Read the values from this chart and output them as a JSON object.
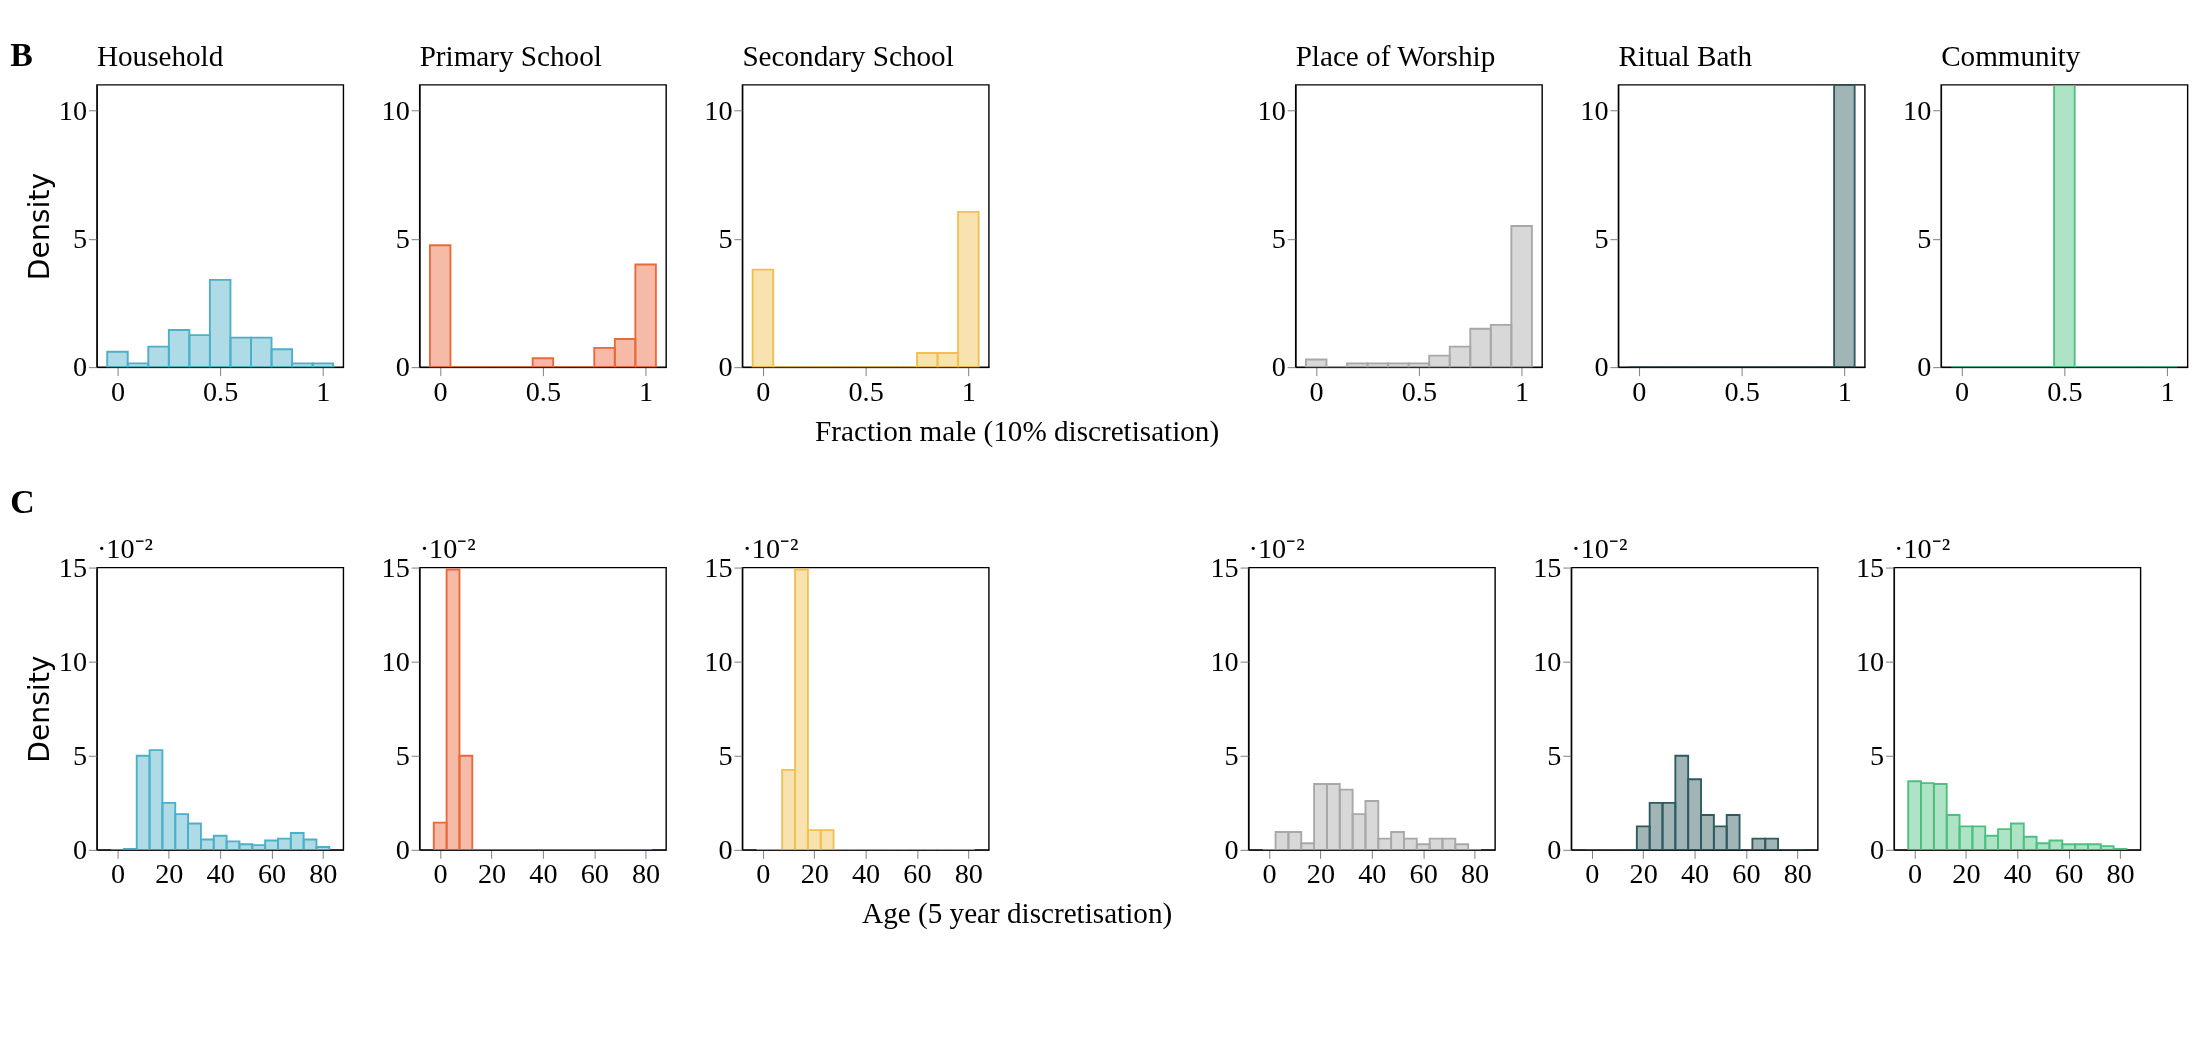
{
  "chart_data": [
    {
      "type": "histogram",
      "title": "Household",
      "ylabel": "Density",
      "annotations": [
        "B"
      ],
      "color": "#4bb0c8",
      "bins": [
        -0.05,
        0.05,
        0.15,
        0.25,
        0.35,
        0.45,
        0.55,
        0.65,
        0.75,
        0.85,
        0.95,
        1.05
      ],
      "values": [
        0.6,
        0.15,
        0.8,
        1.45,
        1.25,
        3.4,
        1.15,
        1.15,
        0.7,
        0.15,
        0.15
      ],
      "xlim": [
        -0.1,
        1.1
      ],
      "ylim": [
        0,
        11
      ],
      "xticks": [
        0,
        0.5,
        1
      ],
      "yticks": [
        0,
        5,
        10
      ]
    },
    {
      "type": "histogram",
      "title": "Primary School",
      "color": "#e8693c",
      "bins": [
        -0.05,
        0.05,
        0.15,
        0.25,
        0.35,
        0.45,
        0.55,
        0.65,
        0.75,
        0.85,
        0.95,
        1.05
      ],
      "values": [
        4.75,
        0,
        0,
        0,
        0,
        0.35,
        0,
        0,
        0.75,
        1.1,
        4.0
      ],
      "xlim": [
        -0.1,
        1.1
      ],
      "ylim": [
        0,
        11
      ],
      "xticks": [
        0,
        0.5,
        1
      ],
      "yticks": [
        0,
        5,
        10
      ]
    },
    {
      "type": "histogram",
      "title": "Secondary School",
      "xlabel": "Fraction male (10% discretisation)",
      "color": "#f0c050",
      "bins": [
        -0.05,
        0.05,
        0.15,
        0.25,
        0.35,
        0.45,
        0.55,
        0.65,
        0.75,
        0.85,
        0.95,
        1.05
      ],
      "values": [
        3.8,
        0,
        0,
        0,
        0,
        0,
        0,
        0,
        0.55,
        0.55,
        6.05
      ],
      "xlim": [
        -0.1,
        1.1
      ],
      "ylim": [
        0,
        11
      ],
      "xticks": [
        0,
        0.5,
        1
      ],
      "yticks": [
        0,
        5,
        10
      ]
    },
    {
      "type": "histogram",
      "title": "Place of Worship",
      "color": "#a8a8a8",
      "bins": [
        -0.05,
        0.05,
        0.15,
        0.25,
        0.35,
        0.45,
        0.55,
        0.65,
        0.75,
        0.85,
        0.95,
        1.05
      ],
      "values": [
        0.3,
        0,
        0.15,
        0.15,
        0.15,
        0.15,
        0.45,
        0.8,
        1.5,
        1.65,
        5.5
      ],
      "xlim": [
        -0.1,
        1.1
      ],
      "ylim": [
        0,
        11
      ],
      "xticks": [
        0,
        0.5,
        1
      ],
      "yticks": [
        0,
        5,
        10
      ]
    },
    {
      "type": "histogram",
      "title": "Ritual Bath",
      "color": "#2e5a60",
      "bins": [
        -0.05,
        0.05,
        0.15,
        0.25,
        0.35,
        0.45,
        0.55,
        0.65,
        0.75,
        0.85,
        0.95,
        1.05
      ],
      "values": [
        0,
        0,
        0,
        0,
        0,
        0,
        0,
        0,
        0,
        0,
        11
      ],
      "xlim": [
        -0.1,
        1.1
      ],
      "ylim": [
        0,
        11
      ],
      "xticks": [
        0,
        0.5,
        1
      ],
      "yticks": [
        0,
        5,
        10
      ]
    },
    {
      "type": "histogram",
      "title": "Community",
      "color": "#4cc080",
      "bins": [
        -0.05,
        0.05,
        0.15,
        0.25,
        0.35,
        0.45,
        0.55,
        0.65,
        0.75,
        0.85,
        0.95,
        1.05
      ],
      "values": [
        0,
        0,
        0,
        0,
        0,
        11,
        0,
        0,
        0,
        0,
        0
      ],
      "xlim": [
        -0.1,
        1.1
      ],
      "ylim": [
        0,
        11
      ],
      "xticks": [
        0,
        0.5,
        1
      ],
      "yticks": [
        0,
        5,
        10
      ]
    },
    {
      "type": "histogram",
      "ylabel": "Density",
      "annotations": [
        "C",
        "·10⁻²"
      ],
      "color": "#4bb0c8",
      "bins": [
        -2.5,
        2.5,
        7.5,
        12.5,
        17.5,
        22.5,
        27.5,
        32.5,
        37.5,
        42.5,
        47.5,
        52.5,
        57.5,
        62.5,
        67.5,
        72.5,
        77.5,
        82.5
      ],
      "values": [
        0,
        0.05,
        5.0,
        5.3,
        2.5,
        1.9,
        1.4,
        0.55,
        0.75,
        0.45,
        0.3,
        0.25,
        0.5,
        0.6,
        0.9,
        0.55,
        0.15
      ],
      "xlim": [
        -8,
        88
      ],
      "ylim": [
        0,
        15
      ],
      "xticks": [
        0,
        20,
        40,
        60,
        80
      ],
      "yticks": [
        0,
        5,
        10,
        15
      ]
    },
    {
      "type": "histogram",
      "annotations": [
        "·10⁻²"
      ],
      "color": "#e8693c",
      "bins": [
        -2.5,
        2.5,
        7.5,
        12.5,
        17.5,
        22.5,
        27.5,
        32.5,
        37.5,
        42.5,
        47.5,
        52.5,
        57.5,
        62.5,
        67.5,
        72.5,
        77.5,
        82.5
      ],
      "values": [
        1.45,
        14.9,
        5.0,
        0,
        0,
        0,
        0,
        0,
        0,
        0,
        0,
        0,
        0,
        0,
        0,
        0,
        0
      ],
      "xlim": [
        -8,
        88
      ],
      "ylim": [
        0,
        15
      ],
      "xticks": [
        0,
        20,
        40,
        60,
        80
      ],
      "yticks": [
        0,
        5,
        10,
        15
      ]
    },
    {
      "type": "histogram",
      "xlabel": "Age (5 year discretisation)",
      "annotations": [
        "·10⁻²"
      ],
      "color": "#f0c050",
      "bins": [
        -2.5,
        2.5,
        7.5,
        12.5,
        17.5,
        22.5,
        27.5,
        32.5,
        37.5,
        42.5,
        47.5,
        52.5,
        57.5,
        62.5,
        67.5,
        72.5,
        77.5,
        82.5
      ],
      "values": [
        0,
        0,
        4.25,
        14.9,
        1.05,
        1.05,
        0,
        0,
        0,
        0,
        0,
        0,
        0,
        0,
        0,
        0,
        0
      ],
      "xlim": [
        -8,
        88
      ],
      "ylim": [
        0,
        15
      ],
      "xticks": [
        0,
        20,
        40,
        60,
        80
      ],
      "yticks": [
        0,
        5,
        10,
        15
      ]
    },
    {
      "type": "histogram",
      "annotations": [
        "·10⁻²"
      ],
      "color": "#a8a8a8",
      "bins": [
        -2.5,
        2.5,
        7.5,
        12.5,
        17.5,
        22.5,
        27.5,
        32.5,
        37.5,
        42.5,
        47.5,
        52.5,
        57.5,
        62.5,
        67.5,
        72.5,
        77.5,
        82.5
      ],
      "values": [
        0,
        0.95,
        0.95,
        0.35,
        3.5,
        3.5,
        3.2,
        1.9,
        2.6,
        0.6,
        0.95,
        0.6,
        0.3,
        0.6,
        0.6,
        0.3,
        0
      ],
      "xlim": [
        -8,
        88
      ],
      "ylim": [
        0,
        15
      ],
      "xticks": [
        0,
        20,
        40,
        60,
        80
      ],
      "yticks": [
        0,
        5,
        10,
        15
      ]
    },
    {
      "type": "histogram",
      "annotations": [
        "·10⁻²"
      ],
      "color": "#2e5a60",
      "bins": [
        -2.5,
        2.5,
        7.5,
        12.5,
        17.5,
        22.5,
        27.5,
        32.5,
        37.5,
        42.5,
        47.5,
        52.5,
        57.5,
        62.5,
        67.5,
        72.5,
        77.5,
        82.5
      ],
      "values": [
        0,
        0,
        0,
        0,
        1.25,
        2.5,
        2.5,
        5.0,
        3.75,
        1.85,
        1.25,
        1.85,
        0,
        0.6,
        0.6,
        0,
        0
      ],
      "xlim": [
        -8,
        88
      ],
      "ylim": [
        0,
        15
      ],
      "xticks": [
        0,
        20,
        40,
        60,
        80
      ],
      "yticks": [
        0,
        5,
        10,
        15
      ]
    },
    {
      "type": "histogram",
      "annotations": [
        "·10⁻²"
      ],
      "color": "#4cc080",
      "bins": [
        -2.5,
        2.5,
        7.5,
        12.5,
        17.5,
        22.5,
        27.5,
        32.5,
        37.5,
        42.5,
        47.5,
        52.5,
        57.5,
        62.5,
        67.5,
        72.5,
        77.5,
        82.5
      ],
      "values": [
        3.65,
        3.55,
        3.5,
        1.85,
        1.25,
        1.25,
        0.75,
        1.1,
        1.4,
        0.7,
        0.35,
        0.5,
        0.3,
        0.3,
        0.3,
        0.2,
        0.05
      ],
      "xlim": [
        -8,
        88
      ],
      "ylim": [
        0,
        15
      ],
      "xticks": [
        0,
        20,
        40,
        60,
        80
      ],
      "yticks": [
        0,
        5,
        10,
        15
      ]
    }
  ]
}
